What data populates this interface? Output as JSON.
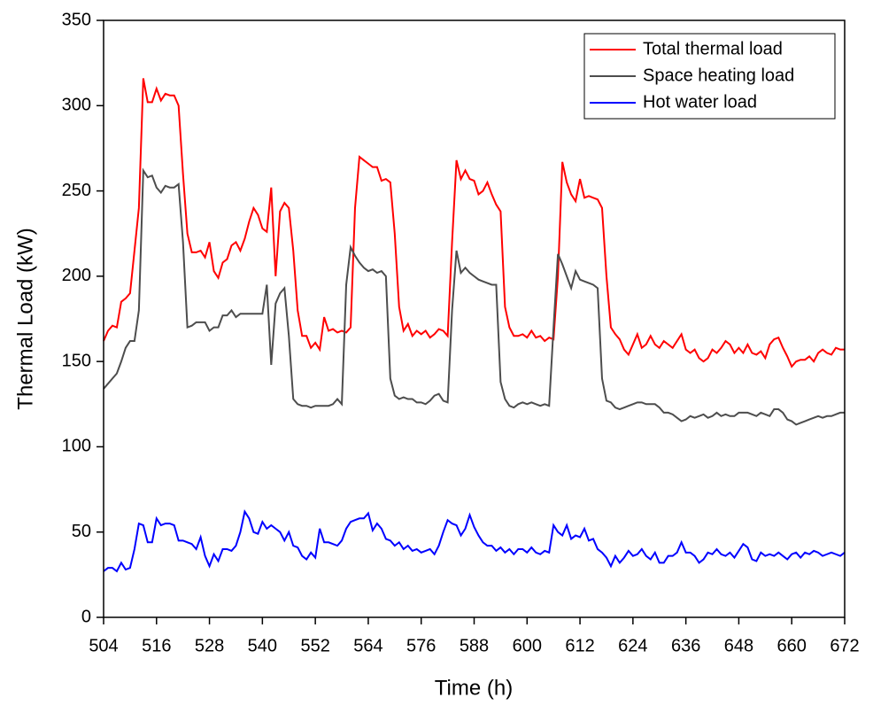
{
  "chart_data": {
    "type": "line",
    "xlabel": "Time (h)",
    "ylabel": "Thermal Load (kW)",
    "x": [
      504,
      505,
      506,
      507,
      508,
      509,
      510,
      511,
      512,
      513,
      514,
      515,
      516,
      517,
      518,
      519,
      520,
      521,
      522,
      523,
      524,
      525,
      526,
      527,
      528,
      529,
      530,
      531,
      532,
      533,
      534,
      535,
      536,
      537,
      538,
      539,
      540,
      541,
      542,
      543,
      544,
      545,
      546,
      547,
      548,
      549,
      550,
      551,
      552,
      553,
      554,
      555,
      556,
      557,
      558,
      559,
      560,
      561,
      562,
      563,
      564,
      565,
      566,
      567,
      568,
      569,
      570,
      571,
      572,
      573,
      574,
      575,
      576,
      577,
      578,
      579,
      580,
      581,
      582,
      583,
      584,
      585,
      586,
      587,
      588,
      589,
      590,
      591,
      592,
      593,
      594,
      595,
      596,
      597,
      598,
      599,
      600,
      601,
      602,
      603,
      604,
      605,
      606,
      607,
      608,
      609,
      610,
      611,
      612,
      613,
      614,
      615,
      616,
      617,
      618,
      619,
      620,
      621,
      622,
      623,
      624,
      625,
      626,
      627,
      628,
      629,
      630,
      631,
      632,
      633,
      634,
      635,
      636,
      637,
      638,
      639,
      640,
      641,
      642,
      643,
      644,
      645,
      646,
      647,
      648,
      649,
      650,
      651,
      652,
      653,
      654,
      655,
      656,
      657,
      658,
      659,
      660,
      661,
      662,
      663,
      664,
      665,
      666,
      667,
      668,
      669,
      670,
      671,
      672
    ],
    "series": [
      {
        "name": "Total thermal load",
        "color": "#ff0000",
        "values": [
          162,
          168,
          171,
          170,
          185,
          187,
          190,
          215,
          240,
          316,
          302,
          302,
          310,
          303,
          307,
          306,
          306,
          300,
          260,
          225,
          214,
          214,
          215,
          211,
          220,
          203,
          199,
          208,
          210,
          218,
          220,
          215,
          222,
          232,
          240,
          236,
          228,
          226,
          252,
          200,
          238,
          243,
          240,
          215,
          180,
          165,
          165,
          158,
          161,
          157,
          176,
          168,
          169,
          167,
          168,
          167,
          170,
          240,
          270,
          268,
          266,
          264,
          264,
          256,
          257,
          255,
          225,
          182,
          168,
          172,
          165,
          168,
          166,
          168,
          164,
          166,
          169,
          168,
          165,
          220,
          268,
          257,
          262,
          257,
          256,
          248,
          250,
          255,
          248,
          242,
          238,
          182,
          170,
          165,
          165,
          166,
          164,
          168,
          164,
          165,
          162,
          164,
          163,
          200,
          267,
          255,
          248,
          244,
          257,
          246,
          247,
          246,
          245,
          240,
          200,
          170,
          166,
          163,
          157,
          154,
          160,
          166,
          158,
          160,
          165,
          160,
          158,
          162,
          160,
          158,
          162,
          166,
          157,
          155,
          157,
          152,
          150,
          152,
          157,
          155,
          158,
          162,
          160,
          155,
          158,
          155,
          160,
          155,
          154,
          156,
          152,
          160,
          163,
          164,
          158,
          153,
          147,
          150,
          151,
          151,
          153,
          150,
          155,
          157,
          155,
          154,
          158,
          157,
          157
        ]
      },
      {
        "name": "Space heating load",
        "color": "#4d4d4d",
        "values": [
          134,
          137,
          140,
          143,
          150,
          158,
          162,
          162,
          180,
          262,
          258,
          259,
          252,
          249,
          253,
          252,
          252,
          254,
          220,
          170,
          171,
          173,
          173,
          173,
          168,
          170,
          170,
          177,
          177,
          180,
          176,
          178,
          178,
          178,
          178,
          178,
          178,
          195,
          148,
          184,
          190,
          193,
          165,
          128,
          125,
          124,
          124,
          123,
          124,
          124,
          124,
          124,
          125,
          128,
          125,
          195,
          217,
          212,
          208,
          205,
          203,
          204,
          202,
          203,
          200,
          140,
          130,
          128,
          129,
          128,
          128,
          126,
          126,
          125,
          127,
          130,
          131,
          127,
          126,
          180,
          215,
          202,
          205,
          202,
          200,
          198,
          197,
          196,
          195,
          195,
          138,
          128,
          124,
          123,
          125,
          126,
          125,
          126,
          125,
          124,
          125,
          124,
          170,
          213,
          207,
          200,
          193,
          203,
          198,
          197,
          196,
          195,
          193,
          140,
          127,
          126,
          123,
          122,
          123,
          124,
          125,
          126,
          126,
          125,
          125,
          125,
          123,
          120,
          120,
          119,
          117,
          115,
          116,
          118,
          117,
          118,
          119,
          117,
          118,
          120,
          118,
          119,
          118,
          118,
          120,
          120,
          120,
          119,
          118,
          120,
          119,
          118,
          122,
          122,
          120,
          116,
          115,
          113,
          114,
          115,
          116,
          117,
          118,
          117,
          118,
          118,
          119,
          120,
          120
        ]
      },
      {
        "name": "Hot water load",
        "color": "#0000ff",
        "values": [
          27,
          29,
          29,
          27,
          32,
          28,
          29,
          40,
          55,
          54,
          44,
          44,
          58,
          54,
          55,
          55,
          54,
          45,
          45,
          44,
          43,
          40,
          47,
          36,
          30,
          37,
          33,
          40,
          40,
          39,
          42,
          50,
          62,
          58,
          50,
          49,
          56,
          52,
          54,
          52,
          50,
          45,
          50,
          42,
          41,
          36,
          34,
          38,
          35,
          52,
          44,
          44,
          43,
          42,
          45,
          52,
          56,
          57,
          58,
          58,
          61,
          51,
          55,
          52,
          46,
          45,
          42,
          44,
          40,
          42,
          39,
          40,
          38,
          39,
          40,
          37,
          42,
          50,
          57,
          55,
          54,
          48,
          52,
          60,
          53,
          48,
          44,
          42,
          42,
          39,
          41,
          38,
          40,
          37,
          40,
          40,
          38,
          41,
          38,
          37,
          39,
          38,
          54,
          50,
          48,
          54,
          46,
          48,
          47,
          52,
          45,
          46,
          40,
          38,
          35,
          30,
          36,
          32,
          35,
          39,
          36,
          37,
          40,
          36,
          34,
          38,
          32,
          32,
          36,
          36,
          38,
          44,
          38,
          38,
          36,
          32,
          34,
          38,
          37,
          40,
          37,
          36,
          38,
          35,
          39,
          43,
          41,
          34,
          33,
          38,
          36,
          37,
          36,
          38,
          36,
          34,
          37,
          38,
          35,
          38,
          37,
          39,
          38,
          36,
          37,
          38,
          37,
          36,
          38
        ]
      }
    ],
    "xlim": [
      504,
      672
    ],
    "xticks": [
      504,
      516,
      528,
      540,
      552,
      564,
      576,
      588,
      600,
      612,
      624,
      636,
      648,
      660,
      672
    ],
    "ylim": [
      0,
      350
    ],
    "yticks": [
      0,
      50,
      100,
      150,
      200,
      250,
      300,
      350
    ],
    "legend": "upper right"
  }
}
